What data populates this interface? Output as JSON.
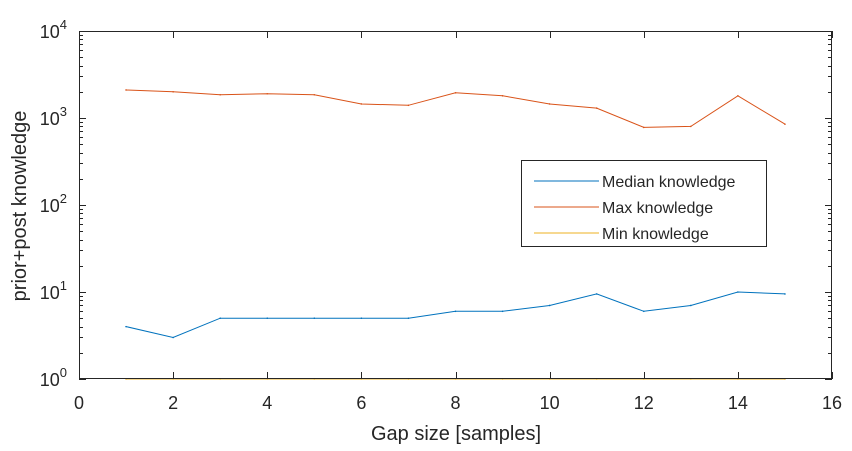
{
  "chart_data": {
    "type": "line",
    "xlabel": "Gap size [samples]",
    "ylabel": "prior+post knowledge",
    "xlim": [
      0,
      16
    ],
    "ylim": [
      1,
      10000
    ],
    "yscale": "log",
    "x_ticks": [
      0,
      2,
      4,
      6,
      8,
      10,
      12,
      14,
      16
    ],
    "y_ticks": [
      {
        "value": 1,
        "base": "10",
        "exp": "0"
      },
      {
        "value": 10,
        "base": "10",
        "exp": "1"
      },
      {
        "value": 100,
        "base": "10",
        "exp": "2"
      },
      {
        "value": 1000,
        "base": "10",
        "exp": "3"
      },
      {
        "value": 10000,
        "base": "10",
        "exp": "4"
      }
    ],
    "legend_position": "right",
    "x": [
      1,
      2,
      3,
      4,
      5,
      6,
      7,
      8,
      9,
      10,
      11,
      12,
      13,
      14,
      15
    ],
    "series": [
      {
        "name": "Median knowledge",
        "color": "#0072BD",
        "values": [
          4,
          3,
          5,
          5,
          5,
          5,
          5,
          6,
          6,
          7,
          9.5,
          6,
          7,
          10,
          9.5
        ]
      },
      {
        "name": "Max knowledge",
        "color": "#D95319",
        "values": [
          2100,
          2000,
          1850,
          1900,
          1850,
          1450,
          1400,
          1950,
          1800,
          1450,
          1300,
          780,
          800,
          1800,
          850
        ]
      },
      {
        "name": "Min knowledge",
        "color": "#EDB120",
        "values": [
          1,
          1,
          1,
          1,
          1,
          1,
          1,
          1,
          1,
          1,
          1,
          1,
          1,
          1,
          1
        ]
      }
    ]
  }
}
